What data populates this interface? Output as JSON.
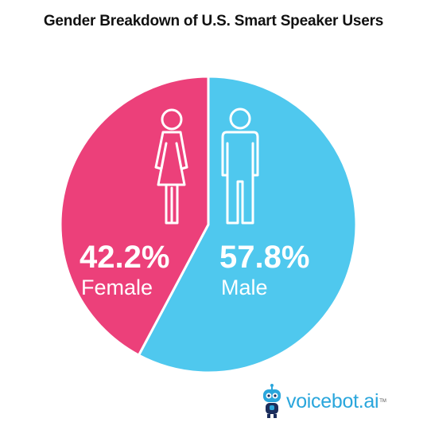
{
  "chart_data": {
    "type": "pie",
    "title": "Gender Breakdown of U.S. Smart Speaker Users",
    "slices": [
      {
        "label": "Female",
        "value": 42.2,
        "value_label": "42.2%",
        "color": "#ec407a",
        "icon": "female-figure-icon"
      },
      {
        "label": "Male",
        "value": 57.8,
        "value_label": "57.8%",
        "color": "#4fc8ee",
        "icon": "male-figure-icon"
      }
    ]
  },
  "brand": {
    "name": "voicebot",
    "tld": ".ai",
    "tm": "TM",
    "color": "#2aa6dc",
    "icon": "robot-mascot-icon"
  }
}
